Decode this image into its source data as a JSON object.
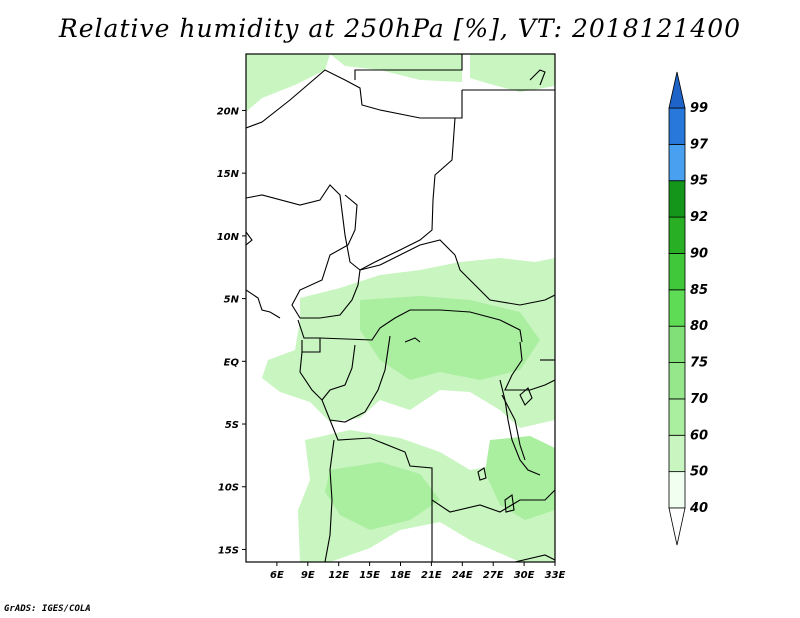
{
  "title": "Relative humidity at 250hPa [%], VT: 2018121400",
  "credit": "GrADS: IGES/COLA",
  "map": {
    "lon_range": [
      3,
      33
    ],
    "lat_range": [
      -16,
      24.5
    ],
    "lat_ticks": [
      {
        "value": 20,
        "label": "20N"
      },
      {
        "value": 15,
        "label": "15N"
      },
      {
        "value": 10,
        "label": "10N"
      },
      {
        "value": 5,
        "label": "5N"
      },
      {
        "value": 0,
        "label": "EQ"
      },
      {
        "value": -5,
        "label": "5S"
      },
      {
        "value": -10,
        "label": "10S"
      },
      {
        "value": -15,
        "label": "15S"
      }
    ],
    "lon_ticks": [
      {
        "value": 6,
        "label": "6E"
      },
      {
        "value": 9,
        "label": "9E"
      },
      {
        "value": 12,
        "label": "12E"
      },
      {
        "value": 15,
        "label": "15E"
      },
      {
        "value": 18,
        "label": "18E"
      },
      {
        "value": 21,
        "label": "21E"
      },
      {
        "value": 24,
        "label": "24E"
      },
      {
        "value": 27,
        "label": "27E"
      },
      {
        "value": 30,
        "label": "30E"
      },
      {
        "value": 33,
        "label": "33E"
      }
    ]
  },
  "colorbar": {
    "levels": [
      "40",
      "50",
      "60",
      "70",
      "75",
      "80",
      "85",
      "90",
      "92",
      "95",
      "97",
      "99"
    ],
    "colors": [
      "#f0fff0",
      "#c8f5c0",
      "#aaeea0",
      "#96e68c",
      "#82e078",
      "#5fdc55",
      "#41c83a",
      "#28af23",
      "#14961a",
      "#4aa0f0",
      "#2878dc",
      "#1e64c8"
    ]
  },
  "chart_data": {
    "type": "heatmap",
    "variable": "Relative humidity at 250hPa [%]",
    "valid_time": "2018121400",
    "contour_levels": [
      40,
      50,
      60,
      70,
      75,
      80,
      85,
      90,
      92,
      95,
      97,
      99
    ],
    "regions": [
      {
        "lon": [
          3,
          10
        ],
        "lat": [
          20,
          24.5
        ],
        "level": "50-60"
      },
      {
        "lon": [
          8,
          14
        ],
        "lat": [
          -1,
          6
        ],
        "level": "50-60"
      },
      {
        "lon": [
          14,
          32
        ],
        "lat": [
          -3,
          7
        ],
        "level": "50-70"
      },
      {
        "lon": [
          9,
          22
        ],
        "lat": [
          -14,
          -5
        ],
        "level": "50-60"
      },
      {
        "lon": [
          23,
          33
        ],
        "lat": [
          -12,
          -3
        ],
        "level": "50-60"
      }
    ]
  }
}
